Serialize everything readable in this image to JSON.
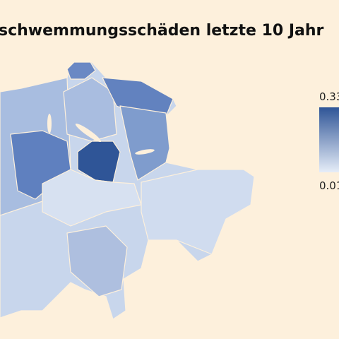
{
  "title": "schwemmungsschäden letzte 10 Jahr",
  "legend": {
    "max": "0.33",
    "min": "0.01"
  }
}
